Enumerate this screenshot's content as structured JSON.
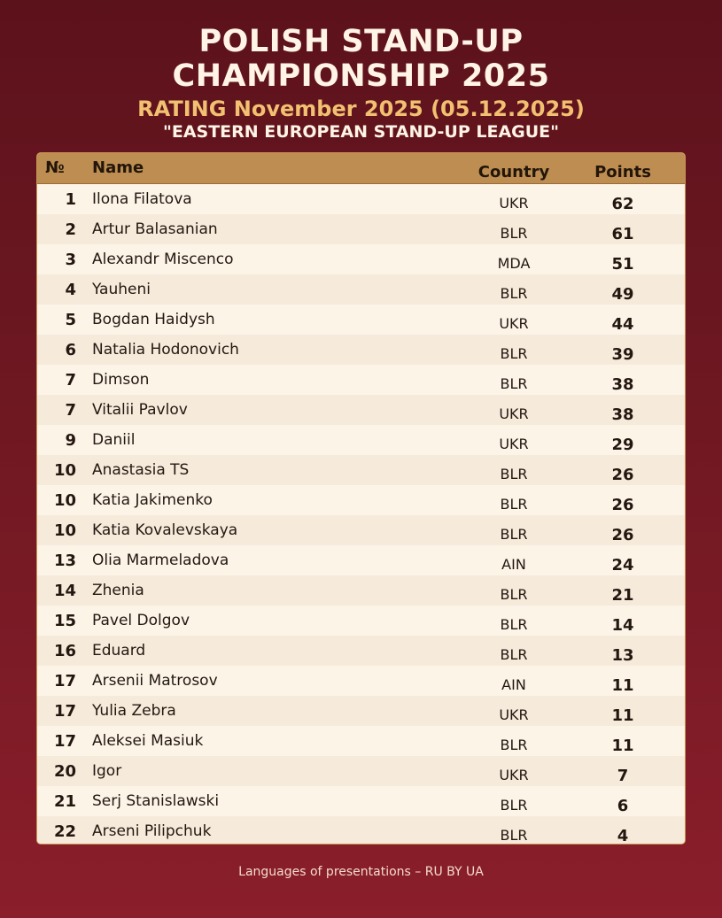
{
  "header": {
    "title_line1": "POLISH STAND-UP",
    "title_line2": "CHAMPIONSHIP 2025",
    "rating": "RATING November 2025 (05.12.2025)",
    "league": "\"EASTERN EUROPEAN STAND-UP LEAGUE\""
  },
  "table": {
    "columns": {
      "rank": "№",
      "name": "Name",
      "country": "Country",
      "points": "Points"
    },
    "rows": [
      {
        "rank": "1",
        "name": "Ilona Filatova",
        "country": "UKR",
        "points": "62"
      },
      {
        "rank": "2",
        "name": "Artur Balasanian",
        "country": "BLR",
        "points": "61"
      },
      {
        "rank": "3",
        "name": "Alexandr Miscenco",
        "country": "MDA",
        "points": "51"
      },
      {
        "rank": "4",
        "name": "Yauheni",
        "country": "BLR",
        "points": "49"
      },
      {
        "rank": "5",
        "name": "Bogdan Haidysh",
        "country": "UKR",
        "points": "44"
      },
      {
        "rank": "6",
        "name": "Natalia Hodonovich",
        "country": "BLR",
        "points": "39"
      },
      {
        "rank": "7",
        "name": "Dimson",
        "country": "BLR",
        "points": "38"
      },
      {
        "rank": "7",
        "name": "Vitalii Pavlov",
        "country": "UKR",
        "points": "38"
      },
      {
        "rank": "9",
        "name": "Daniil",
        "country": "UKR",
        "points": "29"
      },
      {
        "rank": "10",
        "name": "Anastasia TS",
        "country": "BLR",
        "points": "26"
      },
      {
        "rank": "10",
        "name": "Katia Jakimenko",
        "country": "BLR",
        "points": "26"
      },
      {
        "rank": "10",
        "name": "Katia Kovalevskaya",
        "country": "BLR",
        "points": "26"
      },
      {
        "rank": "13",
        "name": "Olia Marmeladova",
        "country": "AIN",
        "points": "24"
      },
      {
        "rank": "14",
        "name": "Zhenia",
        "country": "BLR",
        "points": "21"
      },
      {
        "rank": "15",
        "name": "Pavel Dolgov",
        "country": "BLR",
        "points": "14"
      },
      {
        "rank": "16",
        "name": "Eduard",
        "country": "BLR",
        "points": "13"
      },
      {
        "rank": "17",
        "name": "Arsenii Matrosov",
        "country": "AIN",
        "points": "11"
      },
      {
        "rank": "17",
        "name": "Yulia Zebra",
        "country": "UKR",
        "points": "11"
      },
      {
        "rank": "17",
        "name": "Aleksei Masiuk",
        "country": "BLR",
        "points": "11"
      },
      {
        "rank": "20",
        "name": "Igor",
        "country": "UKR",
        "points": "7"
      },
      {
        "rank": "21",
        "name": "Serj Stanislawski",
        "country": "BLR",
        "points": "6"
      },
      {
        "rank": "22",
        "name": "Arseni Pilipchuk",
        "country": "BLR",
        "points": "4"
      }
    ]
  },
  "footer": {
    "text": "Languages of presentations – RU BY UA"
  }
}
